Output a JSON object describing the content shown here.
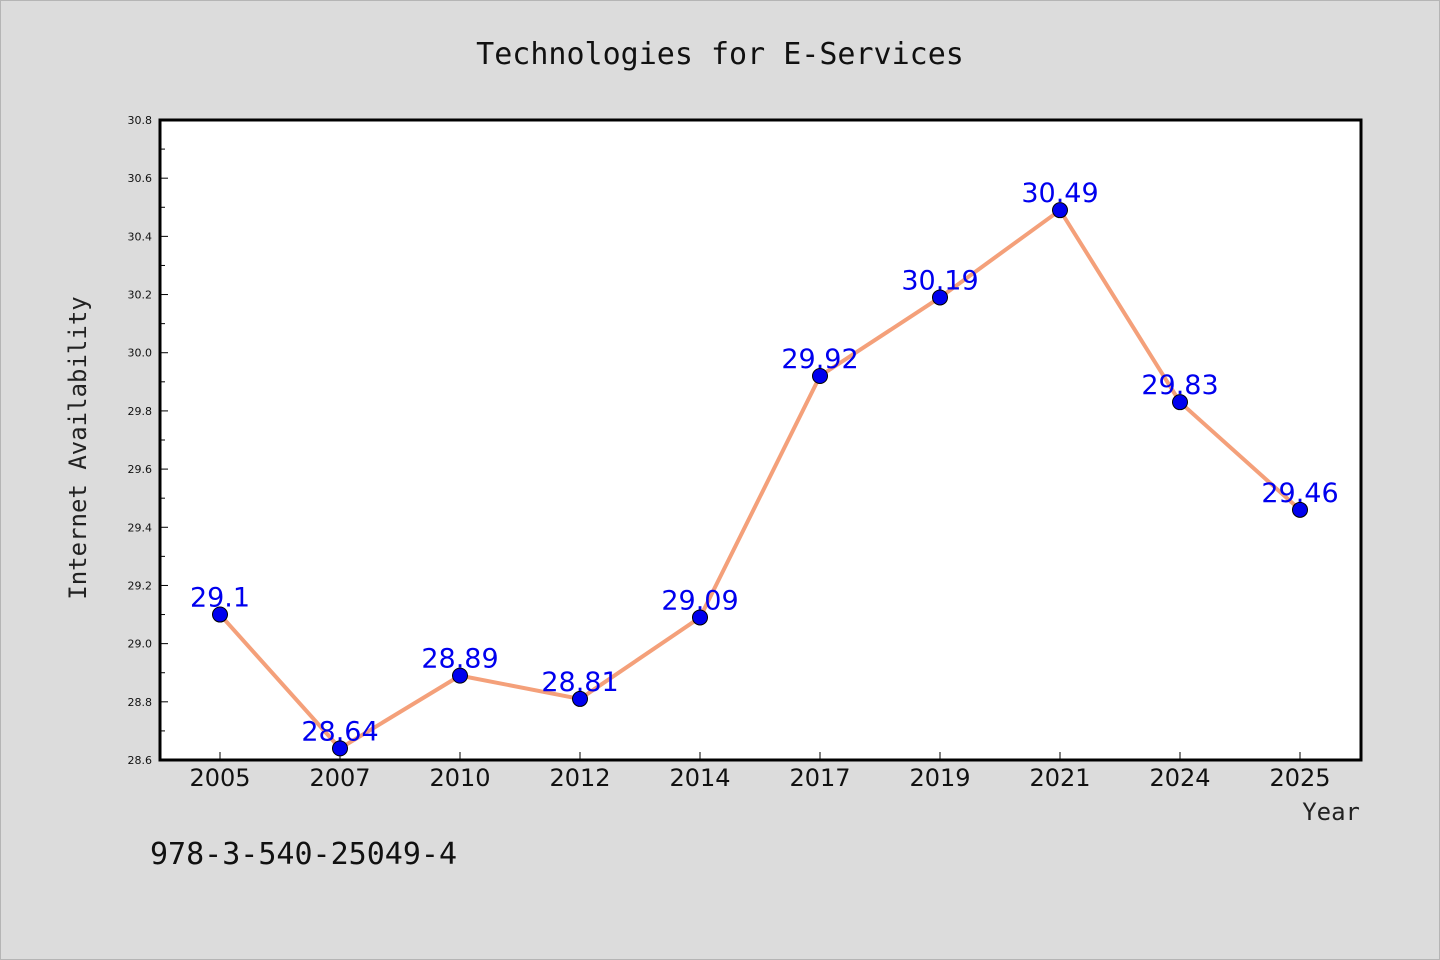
{
  "chart_data": {
    "type": "line",
    "title": "Technologies for E-Services",
    "xlabel": "Year",
    "ylabel": "Internet Availability",
    "categories": [
      "2005",
      "2007",
      "2010",
      "2012",
      "2014",
      "2017",
      "2019",
      "2021",
      "2024",
      "2025"
    ],
    "series": [
      {
        "values": [
          29.1,
          28.64,
          28.89,
          28.81,
          29.09,
          29.92,
          30.19,
          30.49,
          29.83,
          29.46
        ]
      }
    ],
    "data_labels": [
      "29.1",
      "28.64",
      "28.89",
      "28.81",
      "29.09",
      "29.92",
      "30.19",
      "30.49",
      "29.83",
      "29.46"
    ],
    "ylim": [
      28.6,
      30.8
    ],
    "yticks": [
      "28.6",
      "28.8",
      "29.0",
      "29.2",
      "29.4",
      "29.6",
      "29.8",
      "30.0",
      "30.2",
      "30.4",
      "30.6",
      "30.8"
    ],
    "grid": false,
    "line_color": "#f4a07a",
    "marker_color": "#0000ee",
    "label_color": "#0000ee"
  },
  "footnote": "978-3-540-25049-4"
}
